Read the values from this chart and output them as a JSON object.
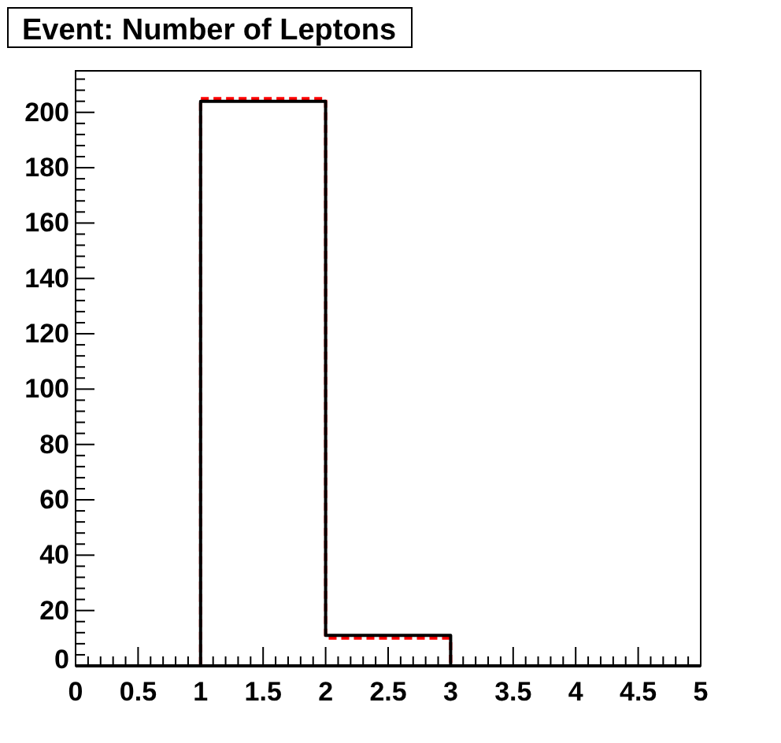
{
  "chart_data": {
    "type": "histogram",
    "title": "Event: Number of Leptons",
    "bins": [
      0,
      1,
      2,
      3,
      4,
      5
    ],
    "series": [
      {
        "color": "#ff0000",
        "line_style": "dashed",
        "values": [
          0,
          205,
          10,
          0,
          0
        ]
      },
      {
        "color": "#000000",
        "line_style": "solid",
        "values": [
          0,
          204,
          11,
          0,
          0
        ]
      }
    ],
    "xlim": [
      0,
      5
    ],
    "ylim": [
      0,
      215
    ],
    "xticks": [
      0,
      {
        "value": 0.1,
        "label": null
      },
      {
        "value": 0.2,
        "label": null
      },
      {
        "value": 0.3,
        "label": null
      },
      {
        "value": 0.4,
        "label": null
      },
      0.5,
      {
        "value": 0.6,
        "label": null
      },
      {
        "value": 0.7,
        "label": null
      },
      {
        "value": 0.8,
        "label": null
      },
      {
        "value": 0.9,
        "label": null
      },
      1,
      {
        "value": 1.1,
        "label": null
      },
      {
        "value": 1.2,
        "label": null
      },
      {
        "value": 1.3,
        "label": null
      },
      {
        "value": 1.4,
        "label": null
      },
      1.5,
      {
        "value": 1.6,
        "label": null
      },
      {
        "value": 1.7,
        "label": null
      },
      {
        "value": 1.8,
        "label": null
      },
      {
        "value": 1.9,
        "label": null
      },
      2,
      {
        "value": 2.1,
        "label": null
      },
      {
        "value": 2.2,
        "label": null
      },
      {
        "value": 2.3,
        "label": null
      },
      {
        "value": 2.4,
        "label": null
      },
      2.5,
      {
        "value": 2.6,
        "label": null
      },
      {
        "value": 2.7,
        "label": null
      },
      {
        "value": 2.8,
        "label": null
      },
      {
        "value": 2.9,
        "label": null
      },
      3,
      {
        "value": 3.1,
        "label": null
      },
      {
        "value": 3.2,
        "label": null
      },
      {
        "value": 3.3,
        "label": null
      },
      {
        "value": 3.4,
        "label": null
      },
      3.5,
      {
        "value": 3.6,
        "label": null
      },
      {
        "value": 3.7,
        "label": null
      },
      {
        "value": 3.8,
        "label": null
      },
      {
        "value": 3.9,
        "label": null
      },
      4,
      {
        "value": 4.1,
        "label": null
      },
      {
        "value": 4.2,
        "label": null
      },
      {
        "value": 4.3,
        "label": null
      },
      {
        "value": 4.4,
        "label": null
      },
      4.5,
      {
        "value": 4.6,
        "label": null
      },
      {
        "value": 4.7,
        "label": null
      },
      {
        "value": 4.8,
        "label": null
      },
      {
        "value": 4.9,
        "label": null
      },
      5
    ],
    "yticks": [
      0,
      {
        "value": 4,
        "label": null
      },
      {
        "value": 8,
        "label": null
      },
      {
        "value": 12,
        "label": null
      },
      {
        "value": 16,
        "label": null
      },
      20,
      {
        "value": 24,
        "label": null
      },
      {
        "value": 28,
        "label": null
      },
      {
        "value": 32,
        "label": null
      },
      {
        "value": 36,
        "label": null
      },
      40,
      {
        "value": 44,
        "label": null
      },
      {
        "value": 48,
        "label": null
      },
      {
        "value": 52,
        "label": null
      },
      {
        "value": 56,
        "label": null
      },
      60,
      {
        "value": 64,
        "label": null
      },
      {
        "value": 68,
        "label": null
      },
      {
        "value": 72,
        "label": null
      },
      {
        "value": 76,
        "label": null
      },
      80,
      {
        "value": 84,
        "label": null
      },
      {
        "value": 88,
        "label": null
      },
      {
        "value": 92,
        "label": null
      },
      {
        "value": 96,
        "label": null
      },
      100,
      {
        "value": 104,
        "label": null
      },
      {
        "value": 108,
        "label": null
      },
      {
        "value": 112,
        "label": null
      },
      {
        "value": 116,
        "label": null
      },
      120,
      {
        "value": 124,
        "label": null
      },
      {
        "value": 128,
        "label": null
      },
      {
        "value": 132,
        "label": null
      },
      {
        "value": 136,
        "label": null
      },
      140,
      {
        "value": 144,
        "label": null
      },
      {
        "value": 148,
        "label": null
      },
      {
        "value": 152,
        "label": null
      },
      {
        "value": 156,
        "label": null
      },
      160,
      {
        "value": 164,
        "label": null
      },
      {
        "value": 168,
        "label": null
      },
      {
        "value": 172,
        "label": null
      },
      {
        "value": 176,
        "label": null
      },
      180,
      {
        "value": 184,
        "label": null
      },
      {
        "value": 188,
        "label": null
      },
      {
        "value": 192,
        "label": null
      },
      {
        "value": 196,
        "label": null
      },
      200,
      {
        "value": 204,
        "label": null
      },
      {
        "value": 208,
        "label": null
      },
      {
        "value": 212,
        "label": null
      }
    ]
  }
}
